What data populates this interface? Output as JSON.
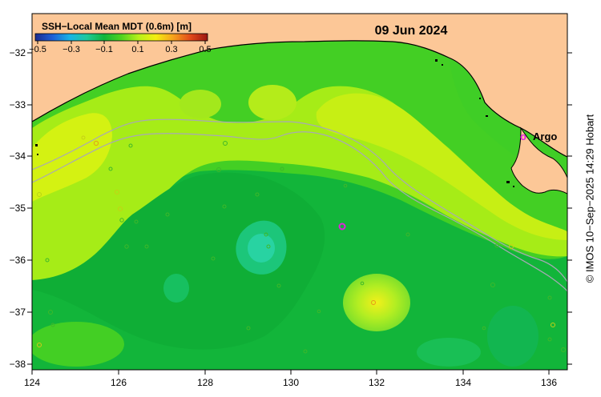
{
  "map": {
    "date": "09 Jun 2024",
    "legend": {
      "title": "SSH−Local Mean MDT (0.6m) [m]",
      "ticks": [
        "−0.5",
        "−0.3",
        "−0.1",
        "0.1",
        "0.3",
        "0.5"
      ],
      "colors": [
        "#1b2a8f",
        "#1f5fd6",
        "#19b3e6",
        "#20c99a",
        "#12b53a",
        "#4fd31f",
        "#b7f01a",
        "#f4ee10",
        "#f6a11b",
        "#e24a1a",
        "#9b1511"
      ]
    },
    "x_axis": {
      "ticks": [
        "124",
        "126",
        "128",
        "130",
        "132",
        "134",
        "136"
      ],
      "range": [
        124,
        136.5
      ]
    },
    "y_axis": {
      "ticks": [
        "−32",
        "−33",
        "−34",
        "−35",
        "−36",
        "−37",
        "−38"
      ],
      "range": [
        -38,
        -31.3
      ]
    },
    "platform": {
      "symbol": "o",
      "label": "Argo",
      "color": "#e020e0"
    },
    "land_color": "#fcc797",
    "credit": "© IMOS 10−Sep−2025 14:29 Hobart"
  }
}
